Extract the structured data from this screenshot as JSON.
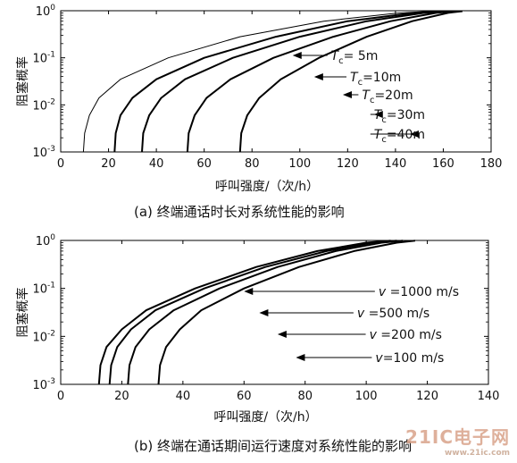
{
  "chart_data": [
    {
      "type": "line",
      "panel_caption": "(a)  终端通话时长对系统性能的影响",
      "xlabel": "呼叫强度/（次/h）",
      "ylabel": "阻塞概率",
      "xlim": [
        0,
        180
      ],
      "ylim": [
        0.001,
        1
      ],
      "y_scale": "log",
      "x_ticks": [
        "0",
        "20",
        "40",
        "60",
        "80",
        "100",
        "120",
        "140",
        "160",
        "180"
      ],
      "y_ticks": [
        {
          "base": "10",
          "exp": "0",
          "value": 1
        },
        {
          "base": "10",
          "exp": "-1",
          "value": 0.1
        },
        {
          "base": "10",
          "exp": "-2",
          "value": 0.01
        },
        {
          "base": "10",
          "exp": "-3",
          "value": 0.001
        }
      ],
      "grid": false,
      "series": [
        {
          "sym": "T",
          "sub": "c",
          "val": "= 5m",
          "x": [
            9.5,
            10,
            12,
            16,
            25,
            45,
            75,
            110,
            140,
            155
          ],
          "y": [
            0.001,
            0.0025,
            0.006,
            0.014,
            0.035,
            0.1,
            0.28,
            0.6,
            0.88,
            0.98
          ],
          "arrow_x": 97,
          "arrow_y": 0.12,
          "thin": true
        },
        {
          "sym": "T",
          "sub": "c",
          "val": "=10m",
          "x": [
            22.5,
            23,
            25,
            30,
            40,
            60,
            90,
            120,
            148,
            160
          ],
          "y": [
            0.001,
            0.0025,
            0.006,
            0.014,
            0.035,
            0.1,
            0.28,
            0.6,
            0.9,
            0.98
          ],
          "arrow_x": 106,
          "arrow_y": 0.043
        },
        {
          "sym": "T",
          "sub": "c",
          "val": "=20m",
          "x": [
            34,
            34.5,
            37,
            42,
            52,
            72,
            100,
            128,
            152,
            162
          ],
          "y": [
            0.001,
            0.0025,
            0.006,
            0.014,
            0.035,
            0.1,
            0.28,
            0.6,
            0.9,
            0.98
          ],
          "arrow_x": 118,
          "arrow_y": 0.015
        },
        {
          "sym": "T",
          "sub": "c",
          "val": "=30m",
          "x": [
            53,
            53.5,
            56,
            61,
            71,
            89,
            114,
            138,
            157,
            165
          ],
          "y": [
            0.001,
            0.0025,
            0.006,
            0.014,
            0.035,
            0.1,
            0.28,
            0.6,
            0.9,
            0.98
          ],
          "arrow_x": 131,
          "arrow_y": 0.0055
        },
        {
          "sym": "T",
          "sub": "c",
          "val": "=40m",
          "x": [
            75,
            75.5,
            78,
            83,
            92,
            108,
            128,
            147,
            162,
            168
          ],
          "y": [
            0.001,
            0.0025,
            0.006,
            0.014,
            0.035,
            0.1,
            0.28,
            0.6,
            0.9,
            0.98
          ],
          "arrow_x": 146,
          "arrow_y": 0.002
        }
      ],
      "annotations_x": [
        113,
        121,
        126,
        131,
        131
      ]
    },
    {
      "type": "line",
      "panel_caption": "(b)  终端在通话期间运行速度对系统性能的影响",
      "xlabel": "呼叫强度/（次/h）",
      "ylabel": "阻塞概率",
      "xlim": [
        0,
        140
      ],
      "ylim": [
        0.001,
        1
      ],
      "y_scale": "log",
      "x_ticks": [
        "0",
        "20",
        "40",
        "60",
        "80",
        "100",
        "120",
        "140"
      ],
      "y_ticks": [
        {
          "base": "10",
          "exp": "0",
          "value": 1
        },
        {
          "base": "10",
          "exp": "-1",
          "value": 0.1
        },
        {
          "base": "10",
          "exp": "-2",
          "value": 0.01
        },
        {
          "base": "10",
          "exp": "-3",
          "value": 0.001
        }
      ],
      "grid": false,
      "series": [
        {
          "sym": "v",
          "sub": "",
          "val": " =1000 m/s",
          "x": [
            12.5,
            13,
            15,
            20,
            28,
            44,
            64,
            84,
            100,
            108
          ],
          "y": [
            0.001,
            0.0025,
            0.006,
            0.014,
            0.035,
            0.1,
            0.28,
            0.6,
            0.9,
            0.99
          ],
          "arrow_x": 60,
          "arrow_y": 0.09
        },
        {
          "sym": "v",
          "sub": "",
          "val": " =500 m/s",
          "x": [
            16,
            16.5,
            18.5,
            23,
            31,
            47,
            67,
            87,
            102,
            110
          ],
          "y": [
            0.001,
            0.0025,
            0.006,
            0.014,
            0.035,
            0.1,
            0.28,
            0.6,
            0.9,
            0.99
          ],
          "arrow_x": 65,
          "arrow_y": 0.032
        },
        {
          "sym": "v",
          "sub": "",
          "val": " =200 m/s",
          "x": [
            22,
            22.5,
            24.5,
            29,
            37,
            52,
            71,
            90,
            105,
            112
          ],
          "y": [
            0.001,
            0.0025,
            0.006,
            0.014,
            0.035,
            0.1,
            0.28,
            0.6,
            0.9,
            0.99
          ],
          "arrow_x": 71,
          "arrow_y": 0.011
        },
        {
          "sym": "v",
          "sub": "",
          "val": "=100 m/s",
          "x": [
            32,
            32.5,
            34.5,
            39,
            46,
            60,
            78,
            96,
            110,
            116
          ],
          "y": [
            0.001,
            0.0025,
            0.006,
            0.014,
            0.035,
            0.1,
            0.28,
            0.6,
            0.9,
            0.99
          ],
          "arrow_x": 77,
          "arrow_y": 0.0036
        }
      ],
      "annotations_x": [
        104,
        97,
        101,
        103
      ]
    }
  ],
  "watermark": {
    "main": "21IC电子网",
    "sub": "www.21ic.com"
  }
}
